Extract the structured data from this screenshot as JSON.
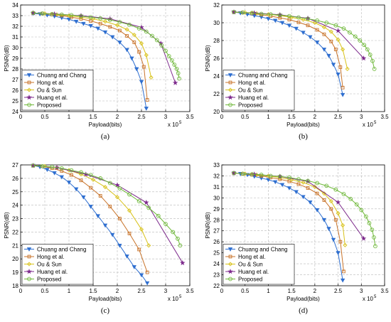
{
  "colors": {
    "Chuang and Chang": "#2f6fd0",
    "Hong et al.": "#c8732a",
    "Ou & Sun": "#d8c21a",
    "Huang et al.": "#7d2a8c",
    "Proposed": "#6fb83a"
  },
  "markers": {
    "Chuang and Chang": "triangle-down",
    "Hong et al.": "square",
    "Ou & Sun": "diamond",
    "Huang et al.": "star",
    "Proposed": "circle"
  },
  "chart_data": [
    {
      "type": "line",
      "panel_label": "(a)",
      "xlabel": "Payload(bits)",
      "ylabel": "PSNR(dB)",
      "x_multiplier": "x 10",
      "x_exponent": "5",
      "xlim": [
        0,
        3.5
      ],
      "ylim": [
        24,
        34
      ],
      "xticks": [
        0,
        0.5,
        1,
        1.5,
        2,
        2.5,
        3,
        3.5
      ],
      "yticks": [
        24,
        25,
        26,
        27,
        28,
        29,
        30,
        31,
        32,
        33,
        34
      ],
      "grid": true,
      "legend_position": "bottom-left",
      "series": [
        {
          "name": "Chuang and Chang",
          "x": [
            0.26,
            0.4,
            0.55,
            0.7,
            0.85,
            1.0,
            1.15,
            1.3,
            1.45,
            1.6,
            1.75,
            1.9,
            2.05,
            2.2,
            2.3,
            2.4,
            2.5,
            2.6
          ],
          "y": [
            33.2,
            33.15,
            33.05,
            32.95,
            32.8,
            32.65,
            32.45,
            32.25,
            32.05,
            31.8,
            31.45,
            31.0,
            30.5,
            29.8,
            29.0,
            28.0,
            26.8,
            24.3
          ]
        },
        {
          "name": "Hong et al.",
          "x": [
            0.26,
            0.45,
            0.65,
            0.85,
            1.05,
            1.25,
            1.45,
            1.65,
            1.85,
            2.05,
            2.2,
            2.35,
            2.45,
            2.55,
            2.62
          ],
          "y": [
            33.25,
            33.2,
            33.1,
            33.0,
            32.85,
            32.7,
            32.5,
            32.25,
            31.95,
            31.6,
            31.1,
            30.5,
            29.6,
            28.2,
            25.1
          ]
        },
        {
          "name": "Ou & Sun",
          "x": [
            0.26,
            0.5,
            0.75,
            1.0,
            1.25,
            1.5,
            1.75,
            2.0,
            2.2,
            2.35,
            2.5,
            2.6,
            2.7
          ],
          "y": [
            33.25,
            33.2,
            33.1,
            33.0,
            32.85,
            32.7,
            32.45,
            32.1,
            31.7,
            31.2,
            30.4,
            29.3,
            27.2
          ]
        },
        {
          "name": "Huang et al.",
          "x": [
            0.26,
            0.7,
            1.25,
            1.85,
            2.5,
            2.9,
            3.2
          ],
          "y": [
            33.25,
            33.15,
            33.0,
            32.7,
            31.9,
            30.4,
            26.7
          ]
        },
        {
          "name": "Proposed",
          "x": [
            0.26,
            0.45,
            0.65,
            0.85,
            1.05,
            1.25,
            1.45,
            1.65,
            1.85,
            2.05,
            2.25,
            2.45,
            2.6,
            2.72,
            2.82,
            2.92,
            3.0,
            3.07,
            3.13,
            3.18,
            3.23,
            3.26,
            3.28
          ],
          "y": [
            33.25,
            33.2,
            33.15,
            33.1,
            33.05,
            32.95,
            32.85,
            32.75,
            32.6,
            32.4,
            32.15,
            31.8,
            31.5,
            31.1,
            30.7,
            30.2,
            29.7,
            29.2,
            28.8,
            28.4,
            28.0,
            27.6,
            27.1
          ]
        }
      ]
    },
    {
      "type": "line",
      "panel_label": "(b)",
      "xlabel": "Payload(bits)",
      "ylabel": "PSNR(dB)",
      "x_multiplier": "x 10",
      "x_exponent": "5",
      "xlim": [
        0,
        3.5
      ],
      "ylim": [
        20,
        32
      ],
      "xticks": [
        0,
        0.5,
        1,
        1.5,
        2,
        2.5,
        3,
        3.5
      ],
      "yticks": [
        20,
        22,
        24,
        26,
        28,
        30,
        32
      ],
      "grid": true,
      "legend_position": "bottom-left",
      "series": [
        {
          "name": "Chuang and Chang",
          "x": [
            0.26,
            0.4,
            0.55,
            0.7,
            0.85,
            1.0,
            1.15,
            1.3,
            1.45,
            1.6,
            1.75,
            1.9,
            2.05,
            2.2,
            2.3,
            2.4,
            2.5,
            2.6
          ],
          "y": [
            31.2,
            31.1,
            30.95,
            30.8,
            30.65,
            30.45,
            30.25,
            30.0,
            29.7,
            29.35,
            28.9,
            28.4,
            27.8,
            27.0,
            26.3,
            25.3,
            24.2,
            21.9
          ]
        },
        {
          "name": "Hong et al.",
          "x": [
            0.26,
            0.45,
            0.65,
            0.85,
            1.05,
            1.25,
            1.45,
            1.65,
            1.85,
            2.05,
            2.2,
            2.35,
            2.45,
            2.55,
            2.6
          ],
          "y": [
            31.2,
            31.15,
            31.05,
            30.9,
            30.75,
            30.55,
            30.35,
            30.05,
            29.7,
            29.2,
            28.7,
            27.9,
            27.0,
            25.0,
            22.7
          ]
        },
        {
          "name": "Ou & Sun",
          "x": [
            0.26,
            0.5,
            0.75,
            1.0,
            1.25,
            1.5,
            1.75,
            2.0,
            2.2,
            2.35,
            2.5,
            2.6,
            2.7
          ],
          "y": [
            31.2,
            31.15,
            31.05,
            30.95,
            30.8,
            30.6,
            30.35,
            30.0,
            29.5,
            29.0,
            28.1,
            27.0,
            24.8
          ]
        },
        {
          "name": "Huang et al.",
          "x": [
            0.26,
            0.7,
            1.25,
            1.85,
            2.5,
            3.05
          ],
          "y": [
            31.2,
            31.1,
            30.9,
            30.5,
            29.1,
            26.0
          ]
        },
        {
          "name": "Proposed",
          "x": [
            0.26,
            0.45,
            0.65,
            0.85,
            1.05,
            1.25,
            1.45,
            1.65,
            1.85,
            2.05,
            2.25,
            2.45,
            2.62,
            2.75,
            2.87,
            2.97,
            3.06,
            3.13,
            3.19,
            3.24,
            3.28
          ],
          "y": [
            31.2,
            31.15,
            31.1,
            31.0,
            30.95,
            30.85,
            30.75,
            30.6,
            30.45,
            30.25,
            30.0,
            29.7,
            29.35,
            28.9,
            28.45,
            28.0,
            27.5,
            27.0,
            26.4,
            25.7,
            24.8
          ]
        }
      ]
    },
    {
      "type": "line",
      "panel_label": "(c)",
      "xlabel": "Payload(bits)",
      "ylabel": "PSNR(dB)",
      "x_multiplier": "x 10",
      "x_exponent": "5",
      "xlim": [
        0,
        3.5
      ],
      "ylim": [
        18,
        27
      ],
      "xticks": [
        0,
        0.5,
        1,
        1.5,
        2,
        2.5,
        3,
        3.5
      ],
      "yticks": [
        18,
        19,
        20,
        21,
        22,
        23,
        24,
        25,
        26,
        27
      ],
      "grid": true,
      "legend_position": "bottom-left",
      "series": [
        {
          "name": "Chuang and Chang",
          "x": [
            0.26,
            0.4,
            0.55,
            0.7,
            0.85,
            1.0,
            1.15,
            1.3,
            1.45,
            1.6,
            1.75,
            1.9,
            2.05,
            2.2,
            2.35,
            2.5,
            2.62
          ],
          "y": [
            26.95,
            26.85,
            26.65,
            26.4,
            26.1,
            25.7,
            25.2,
            24.6,
            23.9,
            23.2,
            22.5,
            21.8,
            21.0,
            20.2,
            19.4,
            18.8,
            18.2
          ]
        },
        {
          "name": "Hong et al.",
          "x": [
            0.26,
            0.45,
            0.65,
            0.85,
            1.05,
            1.25,
            1.45,
            1.65,
            1.85,
            2.05,
            2.25,
            2.45,
            2.62
          ],
          "y": [
            26.95,
            26.9,
            26.75,
            26.55,
            26.25,
            25.85,
            25.3,
            24.7,
            23.9,
            23.0,
            21.9,
            20.7,
            19.0
          ]
        },
        {
          "name": "Ou & Sun",
          "x": [
            0.26,
            0.5,
            0.75,
            1.0,
            1.25,
            1.5,
            1.75,
            2.0,
            2.25,
            2.5,
            2.65
          ],
          "y": [
            26.95,
            26.9,
            26.8,
            26.6,
            26.3,
            25.9,
            25.35,
            24.6,
            23.6,
            22.2,
            21.0
          ]
        },
        {
          "name": "Huang et al.",
          "x": [
            0.26,
            0.75,
            1.35,
            2.0,
            2.6,
            3.35
          ],
          "y": [
            26.95,
            26.8,
            26.3,
            25.5,
            24.2,
            19.7
          ]
        },
        {
          "name": "Proposed",
          "x": [
            0.26,
            0.45,
            0.65,
            0.85,
            1.05,
            1.25,
            1.45,
            1.65,
            1.85,
            2.05,
            2.25,
            2.45,
            2.65,
            2.85,
            3.0,
            3.15,
            3.25,
            3.3
          ],
          "y": [
            26.95,
            26.9,
            26.85,
            26.75,
            26.6,
            26.45,
            26.25,
            26.0,
            25.65,
            25.25,
            24.8,
            24.3,
            23.8,
            23.2,
            22.6,
            22.0,
            21.5,
            21.0
          ]
        }
      ]
    },
    {
      "type": "line",
      "panel_label": "(d)",
      "xlabel": "Payload(bits)",
      "ylabel": "PSNR(dB)",
      "x_multiplier": "x 10",
      "x_exponent": "5",
      "xlim": [
        0,
        3.5
      ],
      "ylim": [
        22,
        33
      ],
      "xticks": [
        0,
        0.5,
        1,
        1.5,
        2,
        2.5,
        3,
        3.5
      ],
      "yticks": [
        22,
        23,
        24,
        25,
        26,
        27,
        28,
        29,
        30,
        31,
        32,
        33
      ],
      "grid": true,
      "legend_position": "bottom-left",
      "series": [
        {
          "name": "Chuang and Chang",
          "x": [
            0.26,
            0.4,
            0.55,
            0.7,
            0.85,
            1.0,
            1.15,
            1.3,
            1.45,
            1.6,
            1.75,
            1.9,
            2.05,
            2.2,
            2.3,
            2.4,
            2.5,
            2.6
          ],
          "y": [
            32.25,
            32.2,
            32.1,
            31.95,
            31.8,
            31.65,
            31.45,
            31.2,
            30.9,
            30.55,
            30.1,
            29.6,
            28.9,
            28.0,
            27.2,
            26.2,
            25.0,
            22.5
          ]
        },
        {
          "name": "Hong et al.",
          "x": [
            0.26,
            0.45,
            0.65,
            0.85,
            1.05,
            1.25,
            1.45,
            1.65,
            1.85,
            2.05,
            2.2,
            2.35,
            2.45,
            2.55,
            2.62
          ],
          "y": [
            32.25,
            32.2,
            32.1,
            32.0,
            31.85,
            31.7,
            31.5,
            31.25,
            30.9,
            30.4,
            29.8,
            29.0,
            28.0,
            26.0,
            23.3
          ]
        },
        {
          "name": "Ou & Sun",
          "x": [
            0.26,
            0.5,
            0.75,
            1.0,
            1.25,
            1.5,
            1.75,
            2.0,
            2.2,
            2.35,
            2.5,
            2.6,
            2.65
          ],
          "y": [
            32.25,
            32.2,
            32.1,
            32.0,
            31.85,
            31.65,
            31.4,
            31.0,
            30.4,
            29.7,
            28.6,
            27.5,
            25.7
          ]
        },
        {
          "name": "Huang et al.",
          "x": [
            0.26,
            0.7,
            1.25,
            1.85,
            2.5,
            3.05
          ],
          "y": [
            32.25,
            32.15,
            31.95,
            31.5,
            29.6,
            26.3
          ]
        },
        {
          "name": "Proposed",
          "x": [
            0.26,
            0.45,
            0.65,
            0.85,
            1.05,
            1.25,
            1.45,
            1.65,
            1.85,
            2.05,
            2.25,
            2.45,
            2.62,
            2.77,
            2.9,
            3.0,
            3.1,
            3.17,
            3.23,
            3.27,
            3.3
          ],
          "y": [
            32.25,
            32.2,
            32.15,
            32.1,
            32.0,
            31.95,
            31.85,
            31.7,
            31.55,
            31.35,
            31.1,
            30.75,
            30.35,
            29.9,
            29.4,
            28.9,
            28.3,
            27.7,
            27.1,
            26.4,
            25.6
          ]
        }
      ]
    }
  ]
}
